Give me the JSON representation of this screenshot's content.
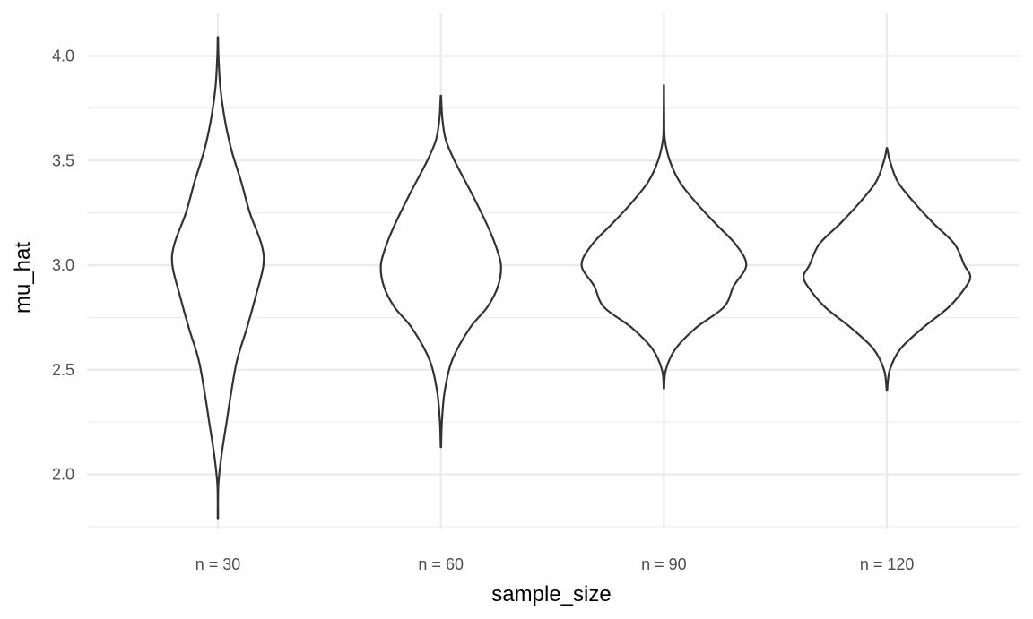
{
  "chart_data": {
    "type": "violin",
    "xlabel": "sample_size",
    "ylabel": "mu_hat",
    "categories": [
      "n = 30",
      "n = 60",
      "n = 90",
      "n = 120"
    ],
    "ylim": [
      1.73,
      4.2
    ],
    "yticks": [
      2.0,
      2.5,
      3.0,
      3.5,
      4.0
    ],
    "ytick_labels": [
      "2.0",
      "2.5",
      "3.0",
      "3.5",
      "4.0"
    ],
    "grid": true,
    "legend": "none",
    "violins": [
      {
        "category": "n = 30",
        "min": 1.79,
        "max": 4.09,
        "profile": [
          [
            1.79,
            0.002
          ],
          [
            1.95,
            0.005
          ],
          [
            2.1,
            0.04
          ],
          [
            2.25,
            0.09
          ],
          [
            2.4,
            0.14
          ],
          [
            2.55,
            0.2
          ],
          [
            2.7,
            0.3
          ],
          [
            2.85,
            0.39
          ],
          [
            3.0,
            0.47
          ],
          [
            3.1,
            0.45
          ],
          [
            3.25,
            0.33
          ],
          [
            3.4,
            0.24
          ],
          [
            3.55,
            0.14
          ],
          [
            3.7,
            0.07
          ],
          [
            3.85,
            0.025
          ],
          [
            4.0,
            0.006
          ],
          [
            4.09,
            0.002
          ]
        ]
      },
      {
        "category": "n = 60",
        "min": 2.13,
        "max": 3.81,
        "profile": [
          [
            2.13,
            0.002
          ],
          [
            2.25,
            0.01
          ],
          [
            2.4,
            0.04
          ],
          [
            2.55,
            0.12
          ],
          [
            2.7,
            0.3
          ],
          [
            2.8,
            0.48
          ],
          [
            2.9,
            0.59
          ],
          [
            3.0,
            0.62
          ],
          [
            3.1,
            0.56
          ],
          [
            3.2,
            0.47
          ],
          [
            3.35,
            0.31
          ],
          [
            3.5,
            0.14
          ],
          [
            3.6,
            0.05
          ],
          [
            3.7,
            0.015
          ],
          [
            3.81,
            0.002
          ]
        ]
      },
      {
        "category": "n = 90",
        "min": 2.41,
        "max": 3.86,
        "profile": [
          [
            2.41,
            0.002
          ],
          [
            2.5,
            0.02
          ],
          [
            2.6,
            0.12
          ],
          [
            2.7,
            0.33
          ],
          [
            2.8,
            0.62
          ],
          [
            2.9,
            0.72
          ],
          [
            3.0,
            0.85
          ],
          [
            3.1,
            0.74
          ],
          [
            3.2,
            0.53
          ],
          [
            3.3,
            0.33
          ],
          [
            3.4,
            0.16
          ],
          [
            3.5,
            0.06
          ],
          [
            3.6,
            0.01
          ],
          [
            3.7,
            0.003
          ],
          [
            3.86,
            0.001
          ]
        ]
      },
      {
        "category": "n = 120",
        "min": 2.4,
        "max": 3.56,
        "profile": [
          [
            2.4,
            0.002
          ],
          [
            2.5,
            0.03
          ],
          [
            2.6,
            0.14
          ],
          [
            2.7,
            0.37
          ],
          [
            2.8,
            0.64
          ],
          [
            2.9,
            0.82
          ],
          [
            2.95,
            0.86
          ],
          [
            3.0,
            0.8
          ],
          [
            3.1,
            0.7
          ],
          [
            3.2,
            0.48
          ],
          [
            3.3,
            0.28
          ],
          [
            3.4,
            0.11
          ],
          [
            3.5,
            0.03
          ],
          [
            3.56,
            0.002
          ]
        ]
      }
    ]
  }
}
